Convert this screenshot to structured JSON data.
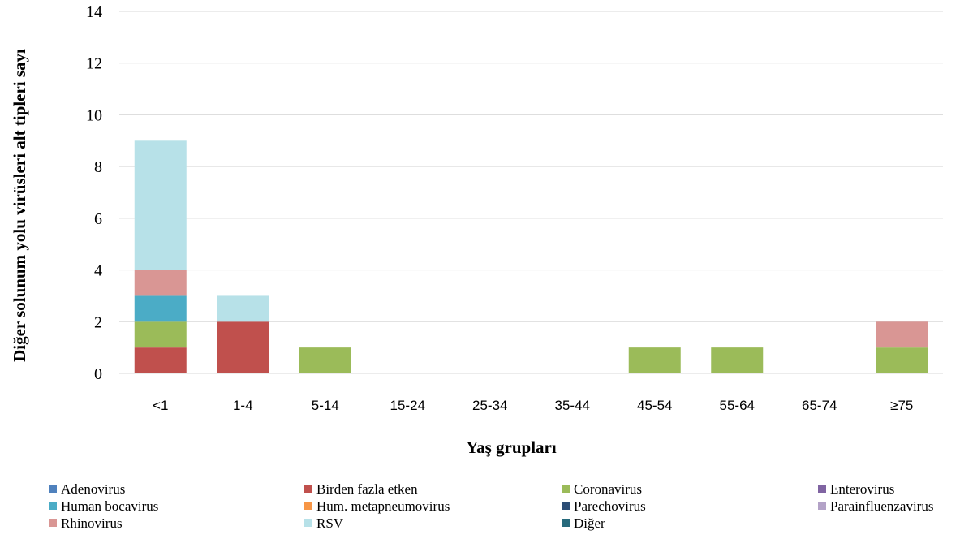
{
  "chart_data": {
    "type": "bar",
    "stacked": true,
    "title": "",
    "xlabel": "Yaş grupları",
    "ylabel": "Diğer solunum yolu virüsleri alt tipleri sayı",
    "ylim": [
      0,
      14
    ],
    "yticks": [
      0,
      2,
      4,
      6,
      8,
      10,
      12,
      14
    ],
    "grid": true,
    "legend_position": "bottom",
    "categories": [
      "<1",
      "1-4",
      "5-14",
      "15-24",
      "25-34",
      "35-44",
      "45-54",
      "55-64",
      "65-74",
      "≥75"
    ],
    "series": [
      {
        "name": "Adenovirus",
        "color": "#4F81BD",
        "values": [
          0,
          0,
          0,
          0,
          0,
          0,
          0,
          0,
          0,
          0
        ]
      },
      {
        "name": "Birden fazla etken",
        "color": "#C0504D",
        "values": [
          1,
          2,
          0,
          0,
          0,
          0,
          0,
          0,
          0,
          0
        ]
      },
      {
        "name": "Coronavirus",
        "color": "#9BBB59",
        "values": [
          1,
          0,
          1,
          0,
          0,
          0,
          1,
          1,
          0,
          1
        ]
      },
      {
        "name": "Enterovirus",
        "color": "#8064A2",
        "values": [
          0,
          0,
          0,
          0,
          0,
          0,
          0,
          0,
          0,
          0
        ]
      },
      {
        "name": "Human bocavirus",
        "color": "#4BACC6",
        "values": [
          1,
          0,
          0,
          0,
          0,
          0,
          0,
          0,
          0,
          0
        ]
      },
      {
        "name": "Hum. metapneumovirus",
        "color": "#F79646",
        "values": [
          0,
          0,
          0,
          0,
          0,
          0,
          0,
          0,
          0,
          0
        ]
      },
      {
        "name": "Parechovirus",
        "color": "#2C4D75",
        "values": [
          0,
          0,
          0,
          0,
          0,
          0,
          0,
          0,
          0,
          0
        ]
      },
      {
        "name": "Parainfluenzavirus",
        "color": "#B3A2C7",
        "values": [
          0,
          0,
          0,
          0,
          0,
          0,
          0,
          0,
          0,
          0
        ]
      },
      {
        "name": "Rhinovirus",
        "color": "#D99694",
        "values": [
          1,
          0,
          0,
          0,
          0,
          0,
          0,
          0,
          0,
          1
        ]
      },
      {
        "name": "RSV",
        "color": "#B7E1E8",
        "values": [
          5,
          1,
          0,
          0,
          0,
          0,
          0,
          0,
          0,
          0
        ]
      },
      {
        "name": "Diğer",
        "color": "#276A7C",
        "values": [
          0,
          0,
          0,
          0,
          0,
          0,
          0,
          0,
          0,
          0
        ]
      }
    ]
  }
}
